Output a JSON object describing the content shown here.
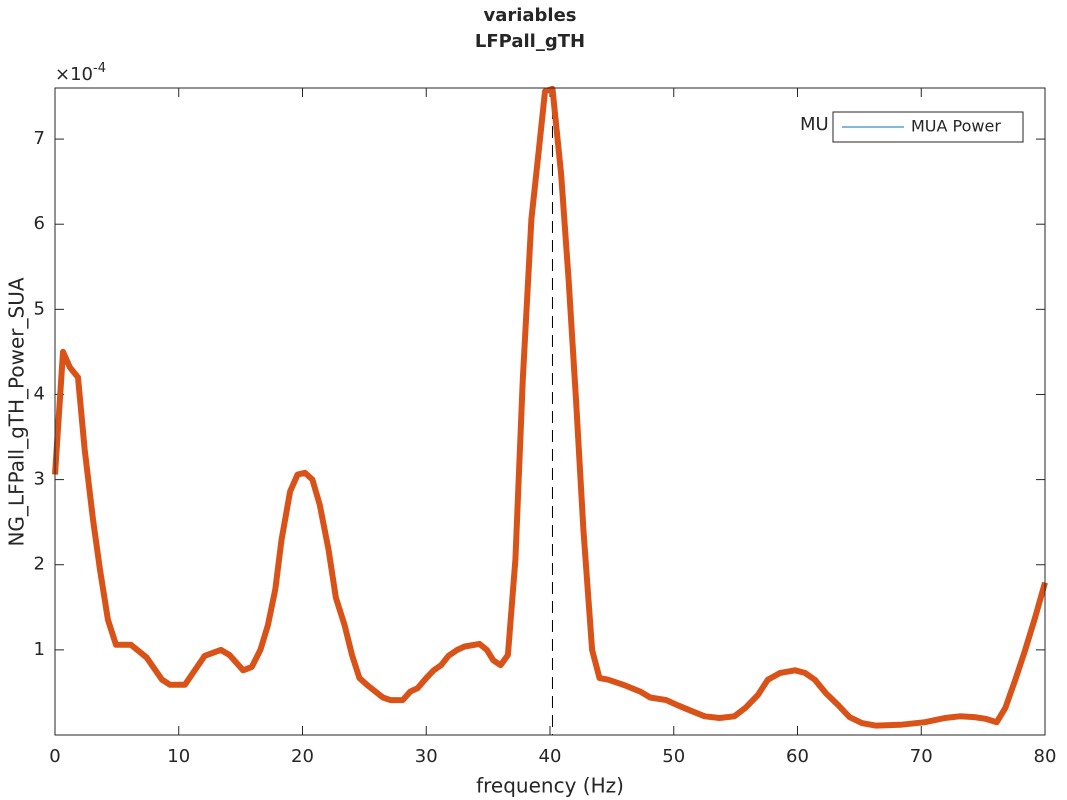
{
  "chart_data": {
    "type": "line",
    "title": "variables",
    "subtitle": "LFPall_gTH",
    "x_label": "frequency (Hz)",
    "y_label": "NG_LFPall_gTH_Power_SUA",
    "y_multiplier": {
      "base": "×10",
      "exponent": "-4"
    },
    "xlim": [
      0,
      80
    ],
    "ylim": [
      0,
      7.6
    ],
    "xticks": [
      0,
      10,
      20,
      30,
      40,
      50,
      60,
      70,
      80
    ],
    "yticks": [
      1,
      2,
      3,
      4,
      5,
      6,
      7
    ],
    "vline_x": 40.2,
    "legend_overlap_text": "MU",
    "legend": [
      {
        "name": "MUA Power",
        "color": "#0072bd"
      }
    ],
    "x": [
      0,
      0.65,
      1.2,
      1.86,
      2.4,
      3.07,
      3.64,
      4.28,
      4.93,
      6.14,
      7.4,
      8.65,
      9.3,
      10.5,
      11.2,
      12.1,
      13.4,
      14.1,
      15.2,
      15.9,
      16.6,
      17.2,
      17.8,
      18.3,
      19.0,
      19.6,
      20.2,
      20.8,
      21.4,
      22.1,
      22.7,
      23.4,
      24.0,
      24.6,
      25.2,
      25.9,
      26.5,
      27.1,
      28.1,
      28.7,
      29.3,
      30.0,
      30.6,
      31.2,
      31.8,
      32.5,
      33.1,
      34.3,
      34.9,
      35.4,
      36.0,
      36.6,
      37.2,
      37.8,
      38.5,
      39.1,
      39.6,
      40.2,
      40.9,
      41.5,
      42.1,
      42.7,
      43.4,
      44.0,
      44.7,
      45.3,
      46.1,
      47.3,
      48.1,
      49.4,
      50.3,
      51.3,
      52.5,
      53.7,
      54.9,
      55.8,
      56.8,
      57.6,
      58.6,
      59.8,
      60.6,
      61.4,
      62.3,
      63.3,
      64.2,
      65.2,
      66.3,
      68.3,
      70.3,
      71.9,
      73.1,
      74.3,
      75.2,
      76.1,
      76.8,
      77.6,
      78.4,
      79.2,
      80
    ],
    "series": [
      {
        "color": "#d95319",
        "values": [
          3.06,
          4.5,
          4.32,
          4.2,
          3.35,
          2.53,
          1.94,
          1.35,
          1.06,
          1.06,
          0.91,
          0.65,
          0.59,
          0.59,
          0.74,
          0.93,
          1.0,
          0.94,
          0.76,
          0.8,
          1.0,
          1.29,
          1.71,
          2.29,
          2.86,
          3.06,
          3.08,
          3.0,
          2.7,
          2.18,
          1.61,
          1.29,
          0.94,
          0.67,
          0.59,
          0.51,
          0.44,
          0.41,
          0.41,
          0.51,
          0.55,
          0.67,
          0.76,
          0.82,
          0.93,
          1.0,
          1.04,
          1.07,
          1.0,
          0.88,
          0.82,
          0.94,
          2.06,
          4.18,
          6.06,
          6.88,
          7.56,
          7.59,
          6.59,
          5.35,
          3.94,
          2.41,
          1.0,
          0.67,
          0.65,
          0.62,
          0.58,
          0.51,
          0.44,
          0.41,
          0.35,
          0.29,
          0.22,
          0.2,
          0.22,
          0.32,
          0.47,
          0.65,
          0.73,
          0.76,
          0.73,
          0.65,
          0.49,
          0.35,
          0.21,
          0.14,
          0.11,
          0.12,
          0.15,
          0.2,
          0.22,
          0.21,
          0.19,
          0.15,
          0.32,
          0.65,
          1.0,
          1.38,
          1.79
        ]
      }
    ]
  }
}
